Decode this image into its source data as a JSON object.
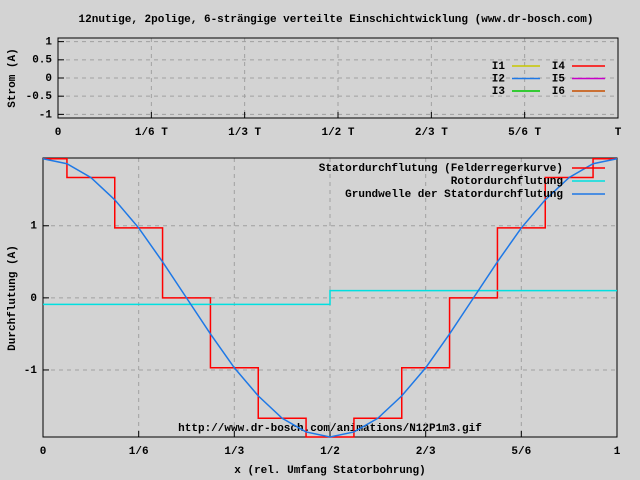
{
  "chart_data": [
    {
      "type": "line",
      "title": "12nutige, 2polige, 6-strängige verteilte Einschichtwicklung (www.dr-bosch.com)",
      "y_label": "Strom (A)",
      "xlim": [
        0,
        1
      ],
      "ylim": [
        -1.1,
        1.1
      ],
      "xticks": [
        0,
        {
          "value": 0.1667,
          "label": "1/6 T"
        },
        {
          "value": 0.3333,
          "label": "1/3 T"
        },
        {
          "value": 0.5,
          "label": "1/2 T"
        },
        {
          "value": 0.6667,
          "label": "2/3 T"
        },
        {
          "value": 0.8333,
          "label": "5/6 T"
        },
        {
          "value": 1,
          "label": "T"
        }
      ],
      "yticks": [
        1,
        0.5,
        0,
        -0.5,
        -1
      ],
      "grid": true,
      "legend": "upper right",
      "series": [
        {
          "name": "I1",
          "color": "#c8c800",
          "values": []
        },
        {
          "name": "I2",
          "color": "#1e78e6",
          "values": []
        },
        {
          "name": "I3",
          "color": "#00c800",
          "values": []
        },
        {
          "name": "I4",
          "color": "#ff0000",
          "values": []
        },
        {
          "name": "I5",
          "color": "#c800c8",
          "values": []
        },
        {
          "name": "I6",
          "color": "#c85000",
          "values": []
        }
      ]
    },
    {
      "type": "line",
      "x_label": "x (rel. Umfang Statorbohrung)",
      "y_label": "Durchflutung (A)",
      "annotation": "http://www.dr-bosch.com/animations/N12P1m3.gif",
      "xlim": [
        0,
        1
      ],
      "ylim": [
        -1.93,
        1.94
      ],
      "xticks": [
        0,
        {
          "value": 0.1667,
          "label": "1/6"
        },
        {
          "value": 0.3333,
          "label": "1/3"
        },
        {
          "value": 0.5,
          "label": "1/2"
        },
        {
          "value": 0.6667,
          "label": "2/3"
        },
        {
          "value": 0.8333,
          "label": "5/6"
        },
        1
      ],
      "yticks": [
        1,
        0,
        -1
      ],
      "grid": true,
      "legend": "upper right",
      "series": [
        {
          "name": "Statordurchflutung (Felderregerkurve)",
          "color": "#ff0000",
          "step": true,
          "x": [
            0,
            0.0417,
            0.125,
            0.2083,
            0.2917,
            0.375,
            0.4583,
            0.5417,
            0.625,
            0.7083,
            0.7917,
            0.875,
            0.9583
          ],
          "values": [
            1.93,
            1.67,
            0.97,
            0,
            -0.97,
            -1.67,
            -1.93,
            -1.67,
            -0.97,
            0,
            0.97,
            1.67,
            1.93
          ]
        },
        {
          "name": "Rotordurchflutung",
          "color": "#00e0e0",
          "step": true,
          "x": [
            0,
            0.5
          ],
          "values": [
            -0.09,
            0.1
          ]
        },
        {
          "name": "Grundwelle der Statordurchflutung",
          "color": "#1e78e6",
          "step": false,
          "x": [
            0,
            0.0417,
            0.0833,
            0.125,
            0.1667,
            0.2083,
            0.25,
            0.2917,
            0.3333,
            0.375,
            0.4167,
            0.4583,
            0.5,
            0.5417,
            0.5833,
            0.625,
            0.6667,
            0.7083,
            0.75,
            0.7917,
            0.8333,
            0.875,
            0.9167,
            0.9583,
            1
          ],
          "values": [
            1.93,
            1.86,
            1.67,
            1.36,
            0.97,
            0.5,
            0,
            -0.5,
            -0.97,
            -1.36,
            -1.67,
            -1.86,
            -1.93,
            -1.86,
            -1.67,
            -1.36,
            -0.97,
            -0.5,
            0,
            0.5,
            0.97,
            1.36,
            1.67,
            1.86,
            1.93
          ]
        }
      ]
    }
  ]
}
